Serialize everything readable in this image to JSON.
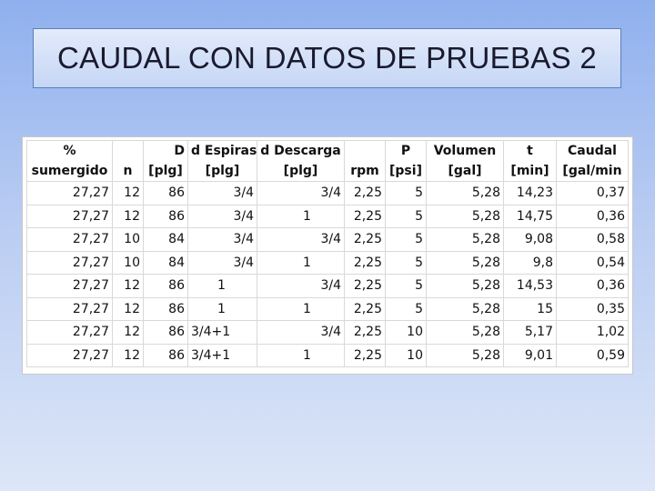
{
  "title": "CAUDAL CON DATOS DE PRUEBAS 2",
  "table": {
    "header_row1": [
      "%",
      "",
      "D",
      "d Espiras",
      "d Descarga",
      "",
      "P",
      "Volumen",
      "t",
      "Caudal"
    ],
    "header_row2": [
      "sumergido",
      "n",
      "[plg]",
      "[plg]",
      "[plg]",
      "rpm",
      "[psi]",
      "[gal]",
      "[min]",
      "[gal/min"
    ],
    "rows": [
      [
        "27,27",
        "12",
        "86",
        "3/4",
        "3/4",
        "2,25",
        "5",
        "5,28",
        "14,23",
        "0,37"
      ],
      [
        "27,27",
        "12",
        "86",
        "3/4",
        "1",
        "2,25",
        "5",
        "5,28",
        "14,75",
        "0,36"
      ],
      [
        "27,27",
        "10",
        "84",
        "3/4",
        "3/4",
        "2,25",
        "5",
        "5,28",
        "9,08",
        "0,58"
      ],
      [
        "27,27",
        "10",
        "84",
        "3/4",
        "1",
        "2,25",
        "5",
        "5,28",
        "9,8",
        "0,54"
      ],
      [
        "27,27",
        "12",
        "86",
        "1",
        "3/4",
        "2,25",
        "5",
        "5,28",
        "14,53",
        "0,36"
      ],
      [
        "27,27",
        "12",
        "86",
        "1",
        "1",
        "2,25",
        "5",
        "5,28",
        "15",
        "0,35"
      ],
      [
        "27,27",
        "12",
        "86",
        "3/4+1",
        "3/4",
        "2,25",
        "10",
        "5,28",
        "5,17",
        "1,02"
      ],
      [
        "27,27",
        "12",
        "86",
        "3/4+1",
        "1",
        "2,25",
        "10",
        "5,28",
        "9,01",
        "0,59"
      ]
    ]
  }
}
